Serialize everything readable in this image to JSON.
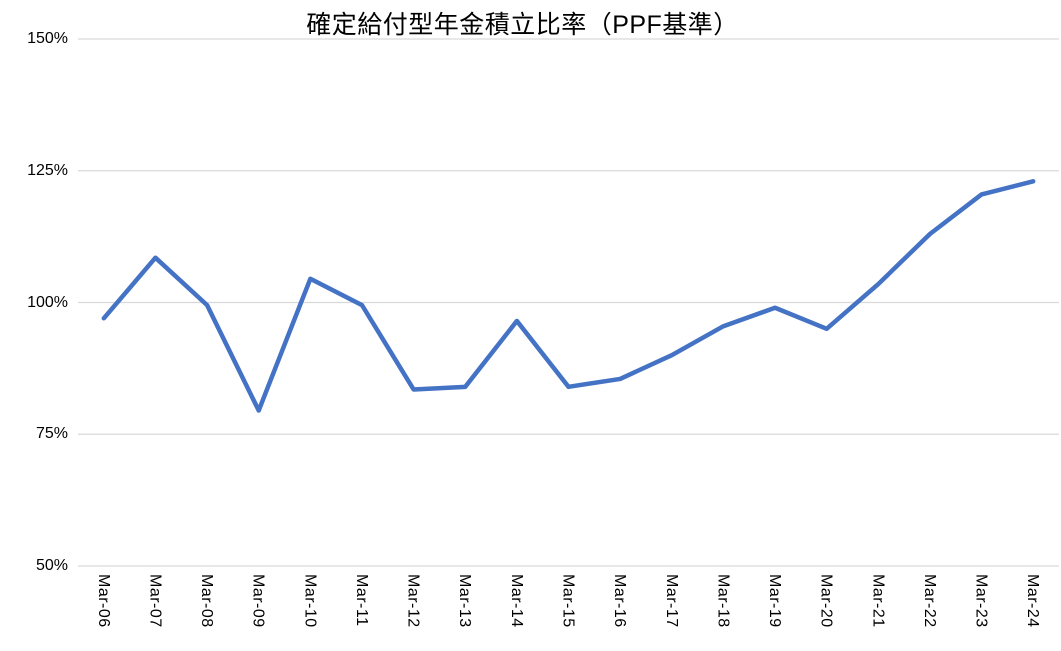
{
  "chart_data": {
    "type": "line",
    "title": "確定給付型年金積立比率（PPF基準）",
    "categories": [
      "Mar-06",
      "Mar-07",
      "Mar-08",
      "Mar-09",
      "Mar-10",
      "Mar-11",
      "Mar-12",
      "Mar-13",
      "Mar-14",
      "Mar-15",
      "Mar-16",
      "Mar-17",
      "Mar-18",
      "Mar-19",
      "Mar-20",
      "Mar-21",
      "Mar-22",
      "Mar-23",
      "Mar-24"
    ],
    "values": [
      97,
      108.5,
      99.5,
      79.5,
      104.5,
      99.5,
      83.5,
      84,
      96.5,
      84,
      85.5,
      90,
      95.5,
      99,
      95,
      103.5,
      113,
      120.5,
      123
    ],
    "unit": "%",
    "xlabel": "",
    "ylabel": "",
    "ylim": [
      50,
      150
    ],
    "y_ticks": [
      {
        "value": 150,
        "label": "150%"
      },
      {
        "value": 125,
        "label": "125%"
      },
      {
        "value": 100,
        "label": "100%"
      },
      {
        "value": 75,
        "label": "75%"
      },
      {
        "value": 50,
        "label": "50%"
      }
    ],
    "grid": "horizontal",
    "legend": "none"
  },
  "colors": {
    "line": "#4472C4",
    "gridline": "#D9D9D9",
    "text": "#000000",
    "background": "#FFFFFF"
  }
}
